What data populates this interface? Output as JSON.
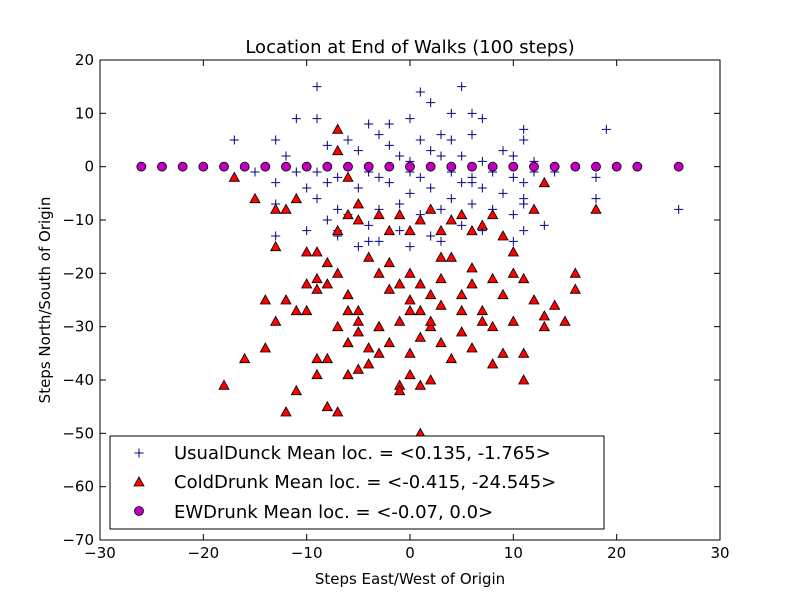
{
  "chart_data": {
    "type": "scatter",
    "title": "Location at End of Walks (100 steps)",
    "xlabel": "Steps East/West of Origin",
    "ylabel": "Steps North/South of Origin",
    "xlim": [
      -30,
      30
    ],
    "ylim": [
      -70,
      20
    ],
    "xticks": [
      -30,
      -20,
      -10,
      0,
      10,
      20,
      30
    ],
    "yticks": [
      -70,
      -60,
      -50,
      -40,
      -30,
      -20,
      -10,
      0,
      10,
      20
    ],
    "xtick_labels": [
      "−30",
      "−20",
      "−10",
      "0",
      "10",
      "20",
      "30"
    ],
    "ytick_labels": [
      "−70",
      "−60",
      "−50",
      "−40",
      "−30",
      "−20",
      "−10",
      "0",
      "10",
      "20"
    ],
    "grid": false,
    "legend_position": "lower-left",
    "series": [
      {
        "name": "UsualDunck Mean loc. = <0.135, -1.765>",
        "marker": "plus",
        "color": "#00007f",
        "points": [
          [
            -9,
            15
          ],
          [
            1,
            14
          ],
          [
            2,
            12
          ],
          [
            5,
            15
          ],
          [
            -11,
            9
          ],
          [
            -9,
            9
          ],
          [
            -4,
            8
          ],
          [
            -2,
            8
          ],
          [
            0,
            9
          ],
          [
            4,
            10
          ],
          [
            6,
            10
          ],
          [
            7,
            9
          ],
          [
            11,
            7
          ],
          [
            19,
            7
          ],
          [
            -17,
            5
          ],
          [
            -13,
            5
          ],
          [
            -6,
            5
          ],
          [
            -3,
            6
          ],
          [
            1,
            5
          ],
          [
            3,
            6
          ],
          [
            4,
            5
          ],
          [
            6,
            6
          ],
          [
            9,
            3
          ],
          [
            11,
            5
          ],
          [
            -12,
            2
          ],
          [
            -8,
            4
          ],
          [
            -5,
            3
          ],
          [
            -2,
            4
          ],
          [
            -1,
            2
          ],
          [
            0,
            1
          ],
          [
            2,
            3
          ],
          [
            3,
            2
          ],
          [
            5,
            2
          ],
          [
            7,
            1
          ],
          [
            10,
            2
          ],
          [
            12,
            1
          ],
          [
            -15,
            -1
          ],
          [
            -11,
            -1
          ],
          [
            -9,
            -1
          ],
          [
            -7,
            -2
          ],
          [
            -4,
            -1
          ],
          [
            -3,
            -2
          ],
          [
            0,
            -1
          ],
          [
            1,
            -2
          ],
          [
            4,
            -1
          ],
          [
            6,
            -2
          ],
          [
            8,
            -1
          ],
          [
            10,
            -2
          ],
          [
            12,
            -1
          ],
          [
            14,
            -1
          ],
          [
            18,
            -2
          ],
          [
            -13,
            -3
          ],
          [
            -10,
            -4
          ],
          [
            -8,
            -3
          ],
          [
            -5,
            -4
          ],
          [
            -2,
            -3
          ],
          [
            0,
            -5
          ],
          [
            2,
            -4
          ],
          [
            5,
            -3
          ],
          [
            7,
            -4
          ],
          [
            9,
            -5
          ],
          [
            11,
            -3
          ],
          [
            -13,
            -7
          ],
          [
            -9,
            -6
          ],
          [
            -7,
            -8
          ],
          [
            -6,
            -9
          ],
          [
            -3,
            -8
          ],
          [
            -1,
            -7
          ],
          [
            1,
            -9
          ],
          [
            3,
            -8
          ],
          [
            4,
            -6
          ],
          [
            6,
            -7
          ],
          [
            8,
            -8
          ],
          [
            10,
            -9
          ],
          [
            11,
            -7
          ],
          [
            18,
            -6
          ],
          [
            26,
            -8
          ],
          [
            -13,
            -13
          ],
          [
            -10,
            -12
          ],
          [
            -7,
            -12
          ],
          [
            -4,
            -11
          ],
          [
            -1,
            -12
          ],
          [
            2,
            -13
          ],
          [
            5,
            -11
          ],
          [
            7,
            -12
          ],
          [
            10,
            -14
          ],
          [
            11,
            -12
          ],
          [
            13,
            -11
          ],
          [
            -5,
            -15
          ],
          [
            -3,
            -14
          ],
          [
            0,
            -15
          ],
          [
            3,
            -14
          ],
          [
            -7,
            -13
          ],
          [
            -4,
            -14
          ],
          [
            6,
            -3
          ],
          [
            8,
            0
          ],
          [
            -6,
            0
          ],
          [
            4,
            0
          ],
          [
            11,
            -6
          ],
          [
            -8,
            -10
          ]
        ]
      },
      {
        "name": "ColdDrunk Mean loc. = <-0.415, -24.545>",
        "marker": "triangle",
        "color": "#ff0000",
        "points": [
          [
            -17,
            -2
          ],
          [
            -15,
            -6
          ],
          [
            -13,
            -8
          ],
          [
            -13,
            -15
          ],
          [
            -12,
            -8
          ],
          [
            -10,
            -16
          ],
          [
            -11,
            -6
          ],
          [
            -9,
            -16
          ],
          [
            -8,
            -18
          ],
          [
            -7,
            -12
          ],
          [
            -6,
            -9
          ],
          [
            -5,
            -7
          ],
          [
            -7,
            3
          ],
          [
            -7,
            7
          ],
          [
            -6,
            -2
          ],
          [
            -5,
            -10
          ],
          [
            -3,
            -9
          ],
          [
            -2,
            -12
          ],
          [
            -1,
            -9
          ],
          [
            0,
            -12
          ],
          [
            1,
            -10
          ],
          [
            2,
            -8
          ],
          [
            3,
            -12
          ],
          [
            4,
            -10
          ],
          [
            5,
            -9
          ],
          [
            6,
            -12
          ],
          [
            7,
            -11
          ],
          [
            8,
            -9
          ],
          [
            9,
            -13
          ],
          [
            10,
            -16
          ],
          [
            12,
            -8
          ],
          [
            13,
            -3
          ],
          [
            18,
            -8
          ],
          [
            -14,
            -25
          ],
          [
            -12,
            -25
          ],
          [
            -11,
            -27
          ],
          [
            -10,
            -27
          ],
          [
            -9,
            -21
          ],
          [
            -9,
            -23
          ],
          [
            -8,
            -22
          ],
          [
            -7,
            -20
          ],
          [
            -6,
            -24
          ],
          [
            -5,
            -27
          ],
          [
            -5,
            -29
          ],
          [
            -4,
            -17
          ],
          [
            -3,
            -20
          ],
          [
            -2,
            -23
          ],
          [
            -1,
            -22
          ],
          [
            0,
            -20
          ],
          [
            0,
            -25
          ],
          [
            1,
            -22
          ],
          [
            1,
            -27
          ],
          [
            2,
            -24
          ],
          [
            3,
            -21
          ],
          [
            3,
            -26
          ],
          [
            4,
            -17
          ],
          [
            5,
            -24
          ],
          [
            6,
            -19
          ],
          [
            7,
            -27
          ],
          [
            8,
            -21
          ],
          [
            9,
            -24
          ],
          [
            10,
            -20
          ],
          [
            11,
            -21
          ],
          [
            12,
            -25
          ],
          [
            13,
            -28
          ],
          [
            14,
            -26
          ],
          [
            16,
            -20
          ],
          [
            16,
            -23
          ],
          [
            -16,
            -36
          ],
          [
            -14,
            -34
          ],
          [
            -12,
            -46
          ],
          [
            -11,
            -42
          ],
          [
            -9,
            -36
          ],
          [
            -9,
            -39
          ],
          [
            -8,
            -36
          ],
          [
            -7,
            -30
          ],
          [
            -6,
            -33
          ],
          [
            -5,
            -31
          ],
          [
            -4,
            -34
          ],
          [
            -4,
            -37
          ],
          [
            -3,
            -30
          ],
          [
            -2,
            -33
          ],
          [
            -1,
            -29
          ],
          [
            0,
            -35
          ],
          [
            0,
            -39
          ],
          [
            1,
            -32
          ],
          [
            1,
            -41
          ],
          [
            2,
            -30
          ],
          [
            3,
            -33
          ],
          [
            4,
            -36
          ],
          [
            5,
            -31
          ],
          [
            6,
            -34
          ],
          [
            7,
            -29
          ],
          [
            8,
            -37
          ],
          [
            9,
            -35
          ],
          [
            11,
            -35
          ],
          [
            11,
            -40
          ],
          [
            13,
            -30
          ],
          [
            -18,
            -41
          ],
          [
            -8,
            -45
          ],
          [
            -7,
            -46
          ],
          [
            -1,
            -41
          ],
          [
            1,
            -50
          ],
          [
            2,
            -40
          ],
          [
            -1,
            -42
          ],
          [
            -5,
            -38
          ],
          [
            -3,
            -35
          ],
          [
            -6,
            -39
          ],
          [
            -3,
            -30
          ],
          [
            0,
            -27
          ],
          [
            2,
            -29
          ],
          [
            5,
            -27
          ],
          [
            10,
            -29
          ],
          [
            15,
            -29
          ],
          [
            -13,
            -29
          ],
          [
            -6,
            -27
          ],
          [
            -2,
            -18
          ],
          [
            3,
            -17
          ],
          [
            6,
            -22
          ],
          [
            -10,
            -22
          ],
          [
            8,
            -30
          ]
        ]
      },
      {
        "name": "EWDrunk Mean loc. = <-0.07, 0.0>",
        "marker": "circle",
        "color": "#bf00bf",
        "points": [
          [
            -26,
            0
          ],
          [
            -24,
            0
          ],
          [
            -22,
            0
          ],
          [
            -20,
            0
          ],
          [
            -18,
            0
          ],
          [
            -16,
            0
          ],
          [
            -14,
            0
          ],
          [
            -12,
            0
          ],
          [
            -10,
            0
          ],
          [
            -8,
            0
          ],
          [
            -6,
            0
          ],
          [
            -4,
            0
          ],
          [
            -2,
            0
          ],
          [
            0,
            0
          ],
          [
            2,
            0
          ],
          [
            4,
            0
          ],
          [
            6,
            0
          ],
          [
            8,
            0
          ],
          [
            10,
            0
          ],
          [
            12,
            0
          ],
          [
            14,
            0
          ],
          [
            16,
            0
          ],
          [
            18,
            0
          ],
          [
            20,
            0
          ],
          [
            22,
            0
          ],
          [
            26,
            0
          ]
        ]
      }
    ]
  }
}
